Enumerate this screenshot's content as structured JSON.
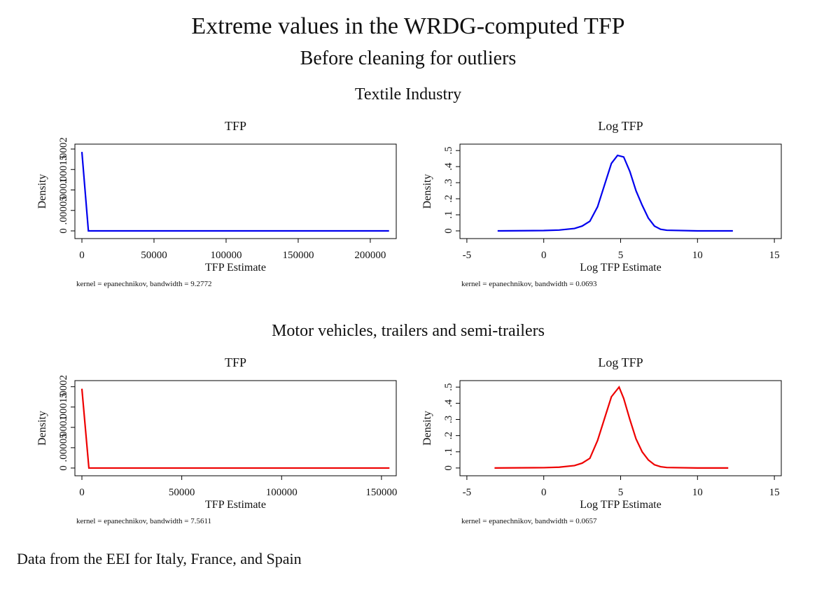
{
  "title": "Extreme values in the WRDG-computed TFP",
  "subtitle": "Before cleaning for outliers",
  "sections": [
    "Textile Industry",
    "Motor vehicles, trailers and semi-trailers"
  ],
  "note": "Data from the EEI for Italy, France, and Spain",
  "chart_data": [
    {
      "type": "line",
      "title": "TFP",
      "xlabel": "TFP Estimate",
      "ylabel": "Density",
      "caption": "kernel = epanechnikov, bandwidth = 9.2772",
      "color": "#0000ee",
      "x": [
        0,
        4500,
        213000
      ],
      "values": [
        0.000193,
        0,
        0
      ],
      "xlim": [
        -4850,
        218000
      ],
      "xticks": [
        0,
        50000,
        100000,
        150000,
        200000
      ],
      "ylim": [
        -1.88e-05,
        0.000212
      ],
      "yticks": [
        0,
        {
          "value": 5e-05,
          "label": ".00005"
        },
        {
          "value": 0.0001,
          "label": ".0001"
        },
        {
          "value": 0.00015,
          "label": ".00015"
        },
        {
          "value": 0.0002,
          "label": ".0002"
        }
      ]
    },
    {
      "type": "line",
      "title": "Log TFP",
      "xlabel": "Log TFP Estimate",
      "ylabel": "Density",
      "caption": "kernel = epanechnikov, bandwidth = 0.0693",
      "color": "#0000ee",
      "x": [
        -3,
        0,
        1,
        2,
        2.5,
        3,
        3.5,
        4,
        4.4,
        4.8,
        5.2,
        5.6,
        6,
        6.4,
        6.8,
        7.2,
        7.6,
        8,
        10,
        12.3
      ],
      "values": [
        0,
        0.002,
        0.005,
        0.015,
        0.03,
        0.06,
        0.15,
        0.3,
        0.42,
        0.47,
        0.46,
        0.37,
        0.25,
        0.16,
        0.08,
        0.03,
        0.01,
        0.004,
        0,
        0
      ],
      "xlim": [
        -5.45,
        15.45
      ],
      "xticks": [
        -5,
        0,
        5,
        10,
        15
      ],
      "ylim": [
        -0.048,
        0.54
      ],
      "yticks": [
        0,
        {
          "value": 0.1,
          "label": ".1"
        },
        {
          "value": 0.2,
          "label": ".2"
        },
        {
          "value": 0.3,
          "label": ".3"
        },
        {
          "value": 0.4,
          "label": ".4"
        },
        {
          "value": 0.5,
          "label": ".5"
        }
      ]
    },
    {
      "type": "line",
      "title": "TFP",
      "xlabel": "TFP Estimate",
      "ylabel": "Density",
      "caption": "kernel = epanechnikov, bandwidth = 7.5611",
      "color": "#ee0000",
      "x": [
        0,
        3500,
        154000
      ],
      "values": [
        0.000195,
        0,
        0
      ],
      "xlim": [
        -3500,
        157400
      ],
      "xticks": [
        0,
        50000,
        100000,
        150000
      ],
      "ylim": [
        -1.9e-05,
        0.000215
      ],
      "yticks": [
        0,
        {
          "value": 5e-05,
          "label": ".00005"
        },
        {
          "value": 0.0001,
          "label": ".0001"
        },
        {
          "value": 0.00015,
          "label": ".00015"
        },
        {
          "value": 0.0002,
          "label": ".0002"
        }
      ]
    },
    {
      "type": "line",
      "title": "Log TFP",
      "xlabel": "Log TFP Estimate",
      "ylabel": "Density",
      "caption": "kernel = epanechnikov, bandwidth = 0.0657",
      "color": "#ee0000",
      "x": [
        -3.2,
        0,
        1,
        2,
        2.5,
        3,
        3.5,
        4,
        4.4,
        4.9,
        5.2,
        5.6,
        6,
        6.4,
        6.8,
        7.2,
        7.6,
        8,
        10,
        12
      ],
      "values": [
        0,
        0.002,
        0.005,
        0.015,
        0.03,
        0.06,
        0.17,
        0.32,
        0.44,
        0.5,
        0.43,
        0.3,
        0.18,
        0.1,
        0.05,
        0.02,
        0.008,
        0.003,
        0,
        0
      ],
      "xlim": [
        -5.45,
        15.45
      ],
      "xticks": [
        -5,
        0,
        5,
        10,
        15
      ],
      "ylim": [
        -0.048,
        0.54
      ],
      "yticks": [
        0,
        {
          "value": 0.1,
          "label": ".1"
        },
        {
          "value": 0.2,
          "label": ".2"
        },
        {
          "value": 0.3,
          "label": ".3"
        },
        {
          "value": 0.4,
          "label": ".4"
        },
        {
          "value": 0.5,
          "label": ".5"
        }
      ]
    }
  ]
}
